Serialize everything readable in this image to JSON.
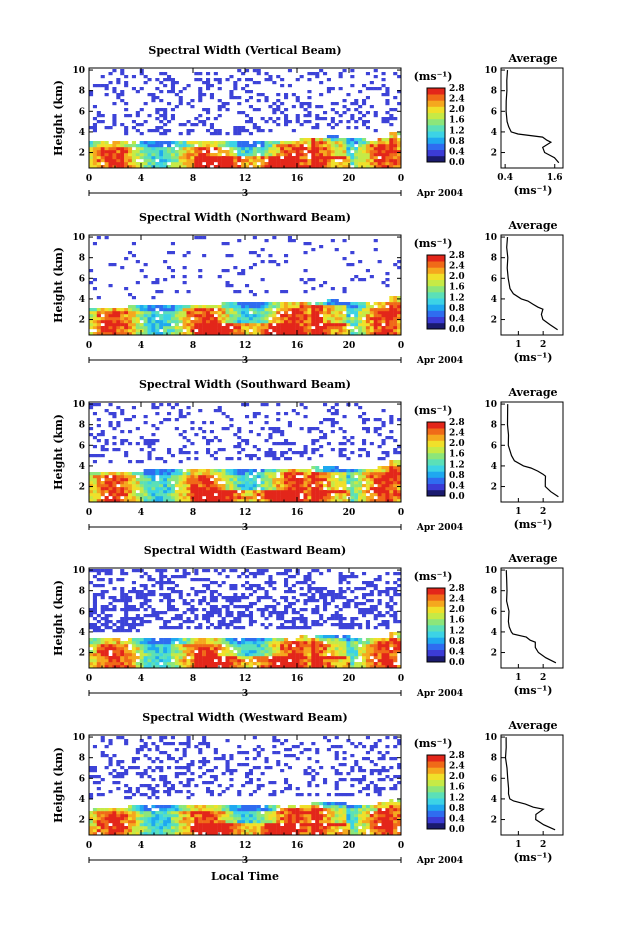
{
  "figure": {
    "xlabel": "Local Time",
    "date_text": "Apr 2004",
    "date_day": "3"
  },
  "colors": {
    "scale": [
      "#1a1a6e",
      "#3b3bd6",
      "#2f6cf0",
      "#1fa8f0",
      "#3cd3e6",
      "#5be0b8",
      "#8ce67a",
      "#c6ea46",
      "#f0e02a",
      "#f5a81e",
      "#f06a18",
      "#e3261a"
    ]
  },
  "chart_data": [
    {
      "type": "heatmap",
      "title": "Spectral Width (Vertical Beam)",
      "ylabel": "Height (km)",
      "xlim": [
        0,
        24
      ],
      "ylim": [
        0.5,
        10.2
      ],
      "xticks": [
        "0",
        "4",
        "8",
        "12",
        "16",
        "20",
        "0"
      ],
      "yticks": [
        "2",
        "4",
        "6",
        "8",
        "10"
      ],
      "colorbar": {
        "unit": "(ms⁻¹)",
        "ticks": [
          "0.0",
          "0.4",
          "0.8",
          "1.2",
          "1.6",
          "2.0",
          "2.4",
          "2.8"
        ],
        "range": [
          0,
          2.8
        ]
      },
      "layer_top_km": [
        3.0,
        3.0,
        3.0,
        3.0,
        3.0,
        3.0,
        3.0,
        3.0,
        3.0,
        3.0,
        3.0,
        3.0,
        3.0,
        3.1,
        3.2,
        3.2,
        3.3,
        3.5,
        3.6,
        3.5,
        3.3,
        3.2,
        3.4,
        3.9
      ],
      "upper_cover": 0.3,
      "avg": {
        "title": "Average",
        "xlabel": "(ms⁻¹)",
        "xticks": [
          "0.4",
          "1.6"
        ],
        "xlim": [
          0.3,
          1.8
        ],
        "profile": {
          "h": [
            10,
            9,
            8,
            7,
            6,
            5,
            4.5,
            4,
            3.8,
            3.5,
            3.2,
            3.0,
            2.5,
            2.0,
            1.5,
            1.0
          ],
          "w": [
            0.45,
            0.45,
            0.43,
            0.42,
            0.42,
            0.45,
            0.48,
            0.55,
            0.7,
            1.3,
            1.4,
            1.5,
            1.3,
            1.35,
            1.6,
            1.7
          ]
        }
      }
    },
    {
      "type": "heatmap",
      "title": "Spectral Width (Northward Beam)",
      "ylabel": "Height (km)",
      "xlim": [
        0,
        24
      ],
      "ylim": [
        0.5,
        10.2
      ],
      "xticks": [
        "0",
        "4",
        "8",
        "12",
        "16",
        "20",
        "0"
      ],
      "yticks": [
        "2",
        "4",
        "6",
        "8",
        "10"
      ],
      "colorbar": {
        "unit": "(ms⁻¹)",
        "ticks": [
          "0.0",
          "0.4",
          "0.8",
          "1.2",
          "1.6",
          "2.0",
          "2.4",
          "2.8"
        ],
        "range": [
          0,
          2.8
        ]
      },
      "layer_top_km": [
        3.2,
        3.2,
        3.2,
        3.3,
        3.3,
        3.3,
        3.4,
        3.5,
        3.5,
        3.5,
        3.6,
        3.6,
        3.6,
        3.6,
        3.7,
        3.7,
        3.8,
        3.8,
        3.9,
        3.8,
        3.7,
        3.6,
        3.7,
        4.3
      ],
      "upper_cover": 0.1,
      "avg": {
        "title": "Average",
        "xlabel": "(ms⁻¹)",
        "xticks": [
          "1",
          "2"
        ],
        "xlim": [
          0.3,
          2.8
        ],
        "profile": {
          "h": [
            10,
            9,
            8,
            7,
            6,
            5,
            4.5,
            4,
            3.8,
            3.5,
            3.2,
            3.0,
            2.5,
            2.0,
            1.5,
            1.0
          ],
          "w": [
            0.55,
            0.55,
            0.55,
            0.55,
            0.6,
            0.65,
            0.8,
            1.1,
            1.4,
            1.6,
            1.8,
            2.0,
            1.95,
            2.0,
            2.3,
            2.6
          ]
        }
      }
    },
    {
      "type": "heatmap",
      "title": "Spectral Width (Southward Beam)",
      "ylabel": "Height (km)",
      "xlim": [
        0,
        24
      ],
      "ylim": [
        0.5,
        10.2
      ],
      "xticks": [
        "0",
        "4",
        "8",
        "12",
        "16",
        "20",
        "0"
      ],
      "yticks": [
        "2",
        "4",
        "6",
        "8",
        "10"
      ],
      "colorbar": {
        "unit": "(ms⁻¹)",
        "ticks": [
          "0.0",
          "0.4",
          "0.8",
          "1.2",
          "1.6",
          "2.0",
          "2.4",
          "2.8"
        ],
        "range": [
          0,
          2.8
        ]
      },
      "layer_top_km": [
        3.5,
        3.5,
        3.5,
        3.5,
        3.6,
        3.6,
        3.6,
        3.7,
        3.7,
        3.7,
        3.7,
        3.7,
        3.8,
        3.8,
        3.8,
        3.8,
        3.8,
        3.9,
        3.9,
        3.8,
        3.8,
        3.8,
        3.9,
        4.5
      ],
      "upper_cover": 0.28,
      "avg": {
        "title": "Average",
        "xlabel": "(ms⁻¹)",
        "xticks": [
          "1",
          "2"
        ],
        "xlim": [
          0.3,
          2.8
        ],
        "profile": {
          "h": [
            10,
            9,
            8,
            7,
            6,
            5,
            4.5,
            4,
            3.8,
            3.5,
            3.2,
            3.0,
            2.5,
            2.0,
            1.5,
            1.0
          ],
          "w": [
            0.55,
            0.55,
            0.55,
            0.6,
            0.6,
            0.7,
            0.85,
            1.2,
            1.5,
            1.8,
            2.0,
            2.1,
            2.1,
            2.1,
            2.3,
            2.6
          ]
        }
      }
    },
    {
      "type": "heatmap",
      "title": "Spectral Width (Eastward Beam)",
      "ylabel": "Height (km)",
      "xlim": [
        0,
        24
      ],
      "ylim": [
        0.5,
        10.2
      ],
      "xticks": [
        "0",
        "4",
        "8",
        "12",
        "16",
        "20",
        "0"
      ],
      "yticks": [
        "2",
        "4",
        "6",
        "8",
        "10"
      ],
      "colorbar": {
        "unit": "(ms⁻¹)",
        "ticks": [
          "0.0",
          "0.4",
          "0.8",
          "1.2",
          "1.6",
          "2.0",
          "2.4",
          "2.8"
        ],
        "range": [
          0,
          2.8
        ]
      },
      "layer_top_km": [
        3.3,
        3.3,
        3.3,
        3.3,
        3.4,
        3.4,
        3.4,
        3.4,
        3.4,
        3.4,
        3.4,
        3.4,
        3.5,
        3.5,
        3.5,
        3.5,
        3.6,
        3.7,
        3.7,
        3.6,
        3.5,
        3.4,
        3.5,
        4.0
      ],
      "upper_cover": 0.55,
      "avg": {
        "title": "Average",
        "xlabel": "(ms⁻¹)",
        "xticks": [
          "1",
          "2"
        ],
        "xlim": [
          0.3,
          2.8
        ],
        "profile": {
          "h": [
            10,
            9,
            8,
            7,
            6,
            5,
            4.5,
            4,
            3.8,
            3.5,
            3.2,
            3.0,
            2.5,
            2.0,
            1.5,
            1.0
          ],
          "w": [
            0.5,
            0.55,
            0.55,
            0.55,
            0.6,
            0.6,
            0.65,
            0.7,
            0.8,
            1.3,
            1.5,
            1.7,
            1.7,
            1.8,
            2.1,
            2.5
          ]
        }
      }
    },
    {
      "type": "heatmap",
      "title": "Spectral Width (Westward Beam)",
      "ylabel": "Height (km)",
      "xlim": [
        0,
        24
      ],
      "ylim": [
        0.5,
        10.2
      ],
      "xticks": [
        "0",
        "4",
        "8",
        "12",
        "16",
        "20",
        "0"
      ],
      "yticks": [
        "2",
        "4",
        "6",
        "8",
        "10"
      ],
      "colorbar": {
        "unit": "(ms⁻¹)",
        "ticks": [
          "0.0",
          "0.4",
          "0.8",
          "1.2",
          "1.6",
          "2.0",
          "2.4",
          "2.8"
        ],
        "range": [
          0,
          2.8
        ]
      },
      "layer_top_km": [
        3.2,
        3.2,
        3.2,
        3.3,
        3.3,
        3.3,
        3.3,
        3.3,
        3.4,
        3.4,
        3.4,
        3.4,
        3.4,
        3.4,
        3.4,
        3.5,
        3.5,
        3.6,
        3.6,
        3.6,
        3.5,
        3.4,
        3.6,
        4.0
      ],
      "upper_cover": 0.32,
      "avg": {
        "title": "Average",
        "xlabel": "(ms⁻¹)",
        "xticks": [
          "1",
          "2"
        ],
        "xlim": [
          0.3,
          2.8
        ],
        "profile": {
          "h": [
            10,
            9,
            8,
            7,
            6,
            5,
            4.5,
            4,
            3.8,
            3.5,
            3.2,
            3.0,
            2.5,
            2.0,
            1.5,
            1.0
          ],
          "w": [
            0.5,
            0.5,
            0.5,
            0.55,
            0.55,
            0.6,
            0.6,
            0.65,
            0.8,
            1.3,
            1.6,
            2.0,
            1.7,
            1.7,
            2.0,
            2.5
          ]
        }
      }
    }
  ]
}
